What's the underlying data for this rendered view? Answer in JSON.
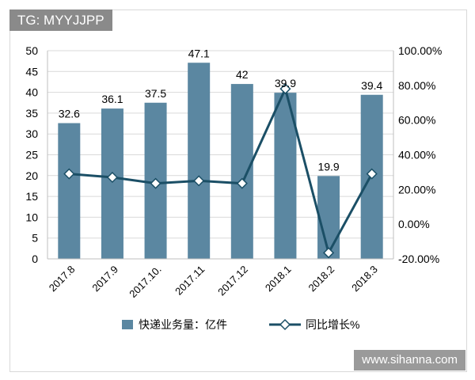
{
  "badge": "TG: MYYJJPP",
  "watermark": "www.sihanna.com",
  "chart_data": {
    "type": "bar",
    "title": "",
    "xlabel": "",
    "ylabel": "",
    "categories": [
      "2017.8",
      "2017.9",
      "2017.10.",
      "2017.11",
      "2017.12",
      "2018.1",
      "2018.2",
      "2018.3"
    ],
    "series": [
      {
        "name": "快递业务量：亿件",
        "type": "bar",
        "axis": "left",
        "color": "#5b87a1",
        "values": [
          32.6,
          36.1,
          37.5,
          47.1,
          42,
          39.9,
          19.9,
          39.4
        ],
        "labels": [
          "32.6",
          "36.1",
          "37.5",
          "47.1",
          "42",
          "39.9",
          "19.9",
          "39.4"
        ]
      },
      {
        "name": "同比增长%",
        "type": "line",
        "axis": "right",
        "color": "#1b4f66",
        "values": [
          29,
          27,
          23.5,
          25,
          23.5,
          78,
          -16.5,
          29
        ]
      }
    ],
    "y_left": {
      "min": 0,
      "max": 50,
      "ticks": [
        0,
        5,
        10,
        15,
        20,
        25,
        30,
        35,
        40,
        45,
        50
      ],
      "tick_labels": [
        "0",
        "5",
        "10",
        "15",
        "20",
        "25",
        "30",
        "35",
        "40",
        "45",
        "50"
      ]
    },
    "y_right": {
      "min": -20,
      "max": 100,
      "ticks": [
        -20,
        0,
        20,
        40,
        60,
        80,
        100
      ],
      "tick_labels": [
        "-20.00%",
        "0.00%",
        "20.00%",
        "40.00%",
        "60.00%",
        "80.00%",
        "100.00%"
      ]
    },
    "grid": true,
    "legend": "bottom"
  }
}
